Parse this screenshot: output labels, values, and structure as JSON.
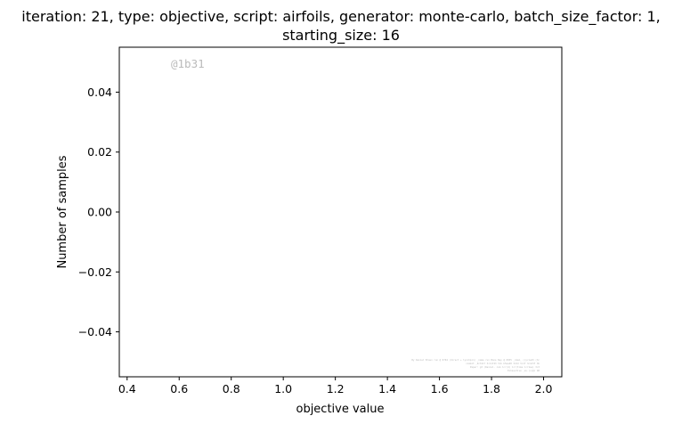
{
  "chart_data": {
    "type": "scatter",
    "title_lines": [
      "iteration: 21, type: objective, script: airfoils, generator: monte-carlo, batch_size_factor: 1,",
      "starting_size: 16"
    ],
    "xlabel": "objective value",
    "ylabel": "Number of samples",
    "xlim": [
      0.37,
      2.07
    ],
    "ylim": [
      -0.055,
      0.055
    ],
    "x_ticks": [
      0.4,
      0.6,
      0.8,
      1.0,
      1.2,
      1.4,
      1.6,
      1.8,
      2.0
    ],
    "x_tick_labels": [
      "0.4",
      "0.6",
      "0.8",
      "1.0",
      "1.2",
      "1.4",
      "1.6",
      "1.8",
      "2.0"
    ],
    "y_ticks": [
      0.04,
      0.02,
      0.0,
      -0.02,
      -0.04
    ],
    "y_tick_labels": [
      "0.04",
      "0.02",
      "0.00",
      "−0.02",
      "−0.04"
    ],
    "series": [],
    "grid": false,
    "annotation": "@1b31",
    "footer_lines": [
      "By Daniel Braun run @ 0704 (direct + lynchpin) _name run Bons Ney @ 0835 _cmsm_ (cycle43 (3c",
      "commit _0c3117 3c11743 3cb b5aa48 3c6d 3c1f 3c4c5f 3b",
      "Paper: g3 (Daniel. com lcr(4) lcr(time lcr1se) 3c3",
      "Exhaustive _ev-(v)@c 4B"
    ],
    "colors": {
      "axis": "#000000",
      "background": "#ffffff"
    }
  }
}
